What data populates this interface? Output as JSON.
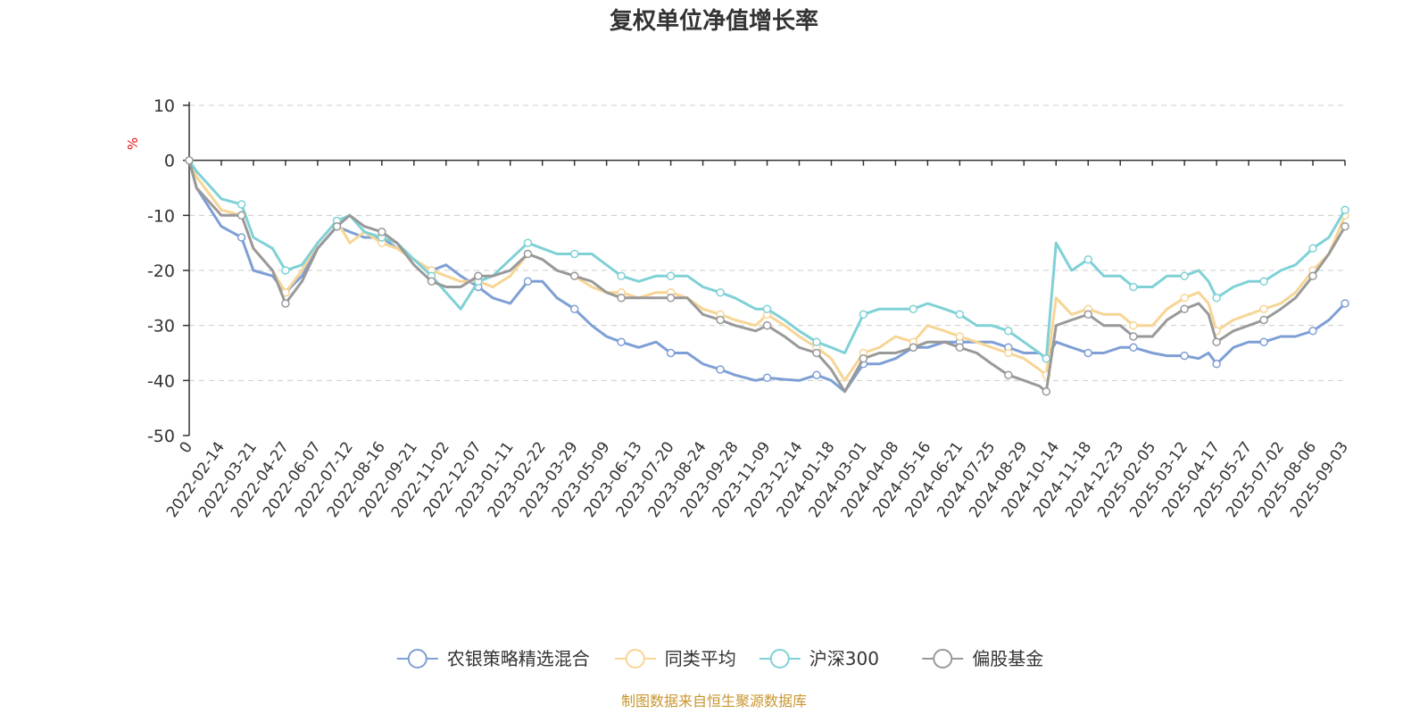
{
  "chart_data": {
    "type": "line",
    "title": "复权单位净值增长率",
    "ylabel": "%",
    "ylim": [
      -50,
      10
    ],
    "yticks": [
      10,
      0,
      -10,
      -20,
      -30,
      -40,
      -50
    ],
    "grid": true,
    "legend_position": "bottom",
    "x_tick_labels": [
      "0",
      "2022-02-14",
      "2022-03-21",
      "2022-04-27",
      "2022-06-07",
      "2022-07-12",
      "2022-08-16",
      "2022-09-21",
      "2022-11-02",
      "2022-12-07",
      "2023-01-11",
      "2023-02-22",
      "2023-03-29",
      "2023-05-09",
      "2023-06-13",
      "2023-07-20",
      "2023-08-24",
      "2023-09-28",
      "2023-11-09",
      "2023-12-14",
      "2024-01-18",
      "2024-03-01",
      "2024-04-08",
      "2024-05-16",
      "2024-06-21",
      "2024-07-25",
      "2024-08-29",
      "2024-10-14",
      "2024-11-18",
      "2024-12-23",
      "2025-02-05",
      "2025-03-12",
      "2025-04-17",
      "2025-05-27",
      "2025-07-02",
      "2025-08-06",
      "2025-09-03"
    ],
    "series": [
      {
        "name": "农银策略精选混合",
        "color": "#7e9fd5",
        "x": [
          "0",
          "2022-01-18",
          "2022-02-14",
          "2022-03-08",
          "2022-03-21",
          "2022-04-12",
          "2022-04-27",
          "2022-05-18",
          "2022-06-07",
          "2022-06-28",
          "2022-07-12",
          "2022-07-28",
          "2022-08-16",
          "2022-09-02",
          "2022-09-21",
          "2022-10-14",
          "2022-11-02",
          "2022-11-18",
          "2022-12-07",
          "2022-12-23",
          "2023-01-11",
          "2023-02-03",
          "2023-02-22",
          "2023-03-10",
          "2023-03-29",
          "2023-04-20",
          "2023-05-09",
          "2023-05-25",
          "2023-06-13",
          "2023-07-03",
          "2023-07-20",
          "2023-08-07",
          "2023-08-24",
          "2023-09-12",
          "2023-09-28",
          "2023-10-25",
          "2023-11-09",
          "2023-11-28",
          "2023-12-14",
          "2024-01-02",
          "2024-01-18",
          "2024-02-05",
          "2024-03-01",
          "2024-03-20",
          "2024-04-08",
          "2024-04-29",
          "2024-05-16",
          "2024-06-04",
          "2024-06-21",
          "2024-07-09",
          "2024-07-25",
          "2024-08-12",
          "2024-08-29",
          "2024-09-20",
          "2024-09-30",
          "2024-10-14",
          "2024-10-31",
          "2024-11-18",
          "2024-12-05",
          "2024-12-23",
          "2025-01-10",
          "2025-02-05",
          "2025-02-21",
          "2025-03-12",
          "2025-03-28",
          "2025-04-08",
          "2025-04-17",
          "2025-05-08",
          "2025-05-27",
          "2025-06-13",
          "2025-07-02",
          "2025-07-18",
          "2025-08-06",
          "2025-08-20",
          "2025-09-03"
        ],
        "values": [
          0,
          -5,
          -12,
          -14,
          -20,
          -21,
          -24,
          -21,
          -16,
          -12,
          -13,
          -14,
          -14,
          -16,
          -18,
          -20,
          -19,
          -21,
          -23,
          -25,
          -26,
          -22,
          -22,
          -25,
          -27,
          -30,
          -32,
          -33,
          -34,
          -33,
          -35,
          -35,
          -37,
          -38,
          -39,
          -40,
          -39.5,
          -39.8,
          -40,
          -39,
          -40,
          -42,
          -37,
          -37,
          -36,
          -34,
          -34,
          -33,
          -33,
          -33,
          -33,
          -34,
          -35,
          -35,
          -36,
          -33,
          -34,
          -35,
          -35,
          -34,
          -34,
          -35,
          -35.5,
          -35.5,
          -36,
          -35,
          -37,
          -34,
          -33,
          -33,
          -32,
          -32,
          -31,
          -29,
          -26
        ]
      },
      {
        "name": "同类平均",
        "color": "#f7d595",
        "x": [
          "0",
          "2022-01-18",
          "2022-02-14",
          "2022-03-08",
          "2022-03-21",
          "2022-04-12",
          "2022-04-27",
          "2022-05-18",
          "2022-06-07",
          "2022-06-28",
          "2022-07-12",
          "2022-07-28",
          "2022-08-16",
          "2022-09-02",
          "2022-09-21",
          "2022-10-14",
          "2022-11-02",
          "2022-11-18",
          "2022-12-07",
          "2022-12-23",
          "2023-01-11",
          "2023-02-03",
          "2023-02-22",
          "2023-03-10",
          "2023-03-29",
          "2023-04-20",
          "2023-05-09",
          "2023-05-25",
          "2023-06-13",
          "2023-07-03",
          "2023-07-20",
          "2023-08-07",
          "2023-08-24",
          "2023-09-12",
          "2023-09-28",
          "2023-10-25",
          "2023-11-09",
          "2023-11-28",
          "2023-12-14",
          "2024-01-02",
          "2024-01-18",
          "2024-02-05",
          "2024-03-01",
          "2024-03-20",
          "2024-04-08",
          "2024-04-29",
          "2024-05-16",
          "2024-06-04",
          "2024-06-21",
          "2024-07-09",
          "2024-07-25",
          "2024-08-12",
          "2024-08-29",
          "2024-09-20",
          "2024-09-30",
          "2024-10-14",
          "2024-10-31",
          "2024-11-18",
          "2024-12-05",
          "2024-12-23",
          "2025-01-10",
          "2025-02-05",
          "2025-02-21",
          "2025-03-12",
          "2025-03-28",
          "2025-04-08",
          "2025-04-17",
          "2025-05-08",
          "2025-05-27",
          "2025-06-13",
          "2025-07-02",
          "2025-07-18",
          "2025-08-06",
          "2025-08-20",
          "2025-09-03"
        ],
        "values": [
          0,
          -3,
          -9,
          -10,
          -16,
          -20,
          -24,
          -20,
          -15,
          -11,
          -15,
          -13,
          -15,
          -16,
          -18,
          -20,
          -21,
          -22,
          -22,
          -23,
          -21,
          -17,
          -18,
          -20,
          -21,
          -23,
          -24,
          -24,
          -25,
          -24,
          -24,
          -25,
          -27,
          -28,
          -29,
          -30,
          -28,
          -30,
          -32,
          -34,
          -36,
          -40,
          -35,
          -34,
          -32,
          -33,
          -30,
          -31,
          -32,
          -33,
          -34,
          -35,
          -36,
          -38,
          -39,
          -25,
          -28,
          -27,
          -28,
          -28,
          -30,
          -30,
          -27,
          -25,
          -24,
          -26,
          -31,
          -29,
          -28,
          -27,
          -26,
          -24,
          -20,
          -17,
          -10
        ]
      },
      {
        "name": "沪深300",
        "color": "#7fd1d6",
        "x": [
          "0",
          "2022-01-18",
          "2022-02-14",
          "2022-03-08",
          "2022-03-21",
          "2022-04-12",
          "2022-04-27",
          "2022-05-18",
          "2022-06-07",
          "2022-06-28",
          "2022-07-12",
          "2022-07-28",
          "2022-08-16",
          "2022-09-02",
          "2022-09-21",
          "2022-10-14",
          "2022-11-02",
          "2022-11-18",
          "2022-12-07",
          "2022-12-23",
          "2023-01-11",
          "2023-02-03",
          "2023-02-22",
          "2023-03-10",
          "2023-03-29",
          "2023-04-20",
          "2023-05-09",
          "2023-05-25",
          "2023-06-13",
          "2023-07-03",
          "2023-07-20",
          "2023-08-07",
          "2023-08-24",
          "2023-09-12",
          "2023-09-28",
          "2023-10-25",
          "2023-11-09",
          "2023-11-28",
          "2023-12-14",
          "2024-01-02",
          "2024-01-18",
          "2024-02-05",
          "2024-03-01",
          "2024-03-20",
          "2024-04-08",
          "2024-04-29",
          "2024-05-16",
          "2024-06-04",
          "2024-06-21",
          "2024-07-09",
          "2024-07-25",
          "2024-08-12",
          "2024-08-29",
          "2024-09-20",
          "2024-09-30",
          "2024-10-14",
          "2024-10-31",
          "2024-11-18",
          "2024-12-05",
          "2024-12-23",
          "2025-01-10",
          "2025-02-05",
          "2025-02-21",
          "2025-03-12",
          "2025-03-28",
          "2025-04-08",
          "2025-04-17",
          "2025-05-08",
          "2025-05-27",
          "2025-06-13",
          "2025-07-02",
          "2025-07-18",
          "2025-08-06",
          "2025-08-20",
          "2025-09-03"
        ],
        "values": [
          0,
          -2,
          -7,
          -8,
          -14,
          -16,
          -20,
          -19,
          -15,
          -11,
          -10,
          -13,
          -14,
          -15,
          -18,
          -21,
          -24,
          -27,
          -22,
          -21,
          -18,
          -15,
          -16,
          -17,
          -17,
          -17,
          -19,
          -21,
          -22,
          -21,
          -21,
          -21,
          -23,
          -24,
          -25,
          -27,
          -27,
          -29,
          -31,
          -33,
          -34,
          -35,
          -28,
          -27,
          -27,
          -27,
          -26,
          -27,
          -28,
          -30,
          -30,
          -31,
          -33,
          -35,
          -36,
          -15,
          -20,
          -18,
          -21,
          -21,
          -23,
          -23,
          -21,
          -21,
          -20,
          -22,
          -25,
          -23,
          -22,
          -22,
          -20,
          -19,
          -16,
          -14,
          -9
        ]
      },
      {
        "name": "偏股基金",
        "color": "#999999",
        "x": [
          "0",
          "2022-01-18",
          "2022-02-14",
          "2022-03-08",
          "2022-03-21",
          "2022-04-12",
          "2022-04-27",
          "2022-05-18",
          "2022-06-07",
          "2022-06-28",
          "2022-07-12",
          "2022-07-28",
          "2022-08-16",
          "2022-09-02",
          "2022-09-21",
          "2022-10-14",
          "2022-11-02",
          "2022-11-18",
          "2022-12-07",
          "2022-12-23",
          "2023-01-11",
          "2023-02-03",
          "2023-02-22",
          "2023-03-10",
          "2023-03-29",
          "2023-04-20",
          "2023-05-09",
          "2023-05-25",
          "2023-06-13",
          "2023-07-03",
          "2023-07-20",
          "2023-08-07",
          "2023-08-24",
          "2023-09-12",
          "2023-09-28",
          "2023-10-25",
          "2023-11-09",
          "2023-11-28",
          "2023-12-14",
          "2024-01-02",
          "2024-01-18",
          "2024-02-05",
          "2024-03-01",
          "2024-03-20",
          "2024-04-08",
          "2024-04-29",
          "2024-05-16",
          "2024-06-04",
          "2024-06-21",
          "2024-07-09",
          "2024-07-25",
          "2024-08-12",
          "2024-08-29",
          "2024-09-20",
          "2024-09-30",
          "2024-10-14",
          "2024-10-31",
          "2024-11-18",
          "2024-12-05",
          "2024-12-23",
          "2025-01-10",
          "2025-02-05",
          "2025-02-21",
          "2025-03-12",
          "2025-03-28",
          "2025-04-08",
          "2025-04-17",
          "2025-05-08",
          "2025-05-27",
          "2025-06-13",
          "2025-07-02",
          "2025-07-18",
          "2025-08-06",
          "2025-08-20",
          "2025-09-03"
        ],
        "values": [
          0,
          -5,
          -10,
          -10,
          -16,
          -20,
          -26,
          -22,
          -16,
          -12,
          -10,
          -12,
          -13,
          -15,
          -19,
          -22,
          -23,
          -23,
          -21,
          -21,
          -20,
          -17,
          -18,
          -20,
          -21,
          -22,
          -24,
          -25,
          -25,
          -25,
          -25,
          -25,
          -28,
          -29,
          -30,
          -31,
          -30,
          -32,
          -34,
          -35,
          -38,
          -42,
          -36,
          -35,
          -35,
          -34,
          -33,
          -33,
          -34,
          -35,
          -37,
          -39,
          -40,
          -41,
          -42,
          -30,
          -29,
          -28,
          -30,
          -30,
          -32,
          -32,
          -29,
          -27,
          -26,
          -28,
          -33,
          -31,
          -30,
          -29,
          -27,
          -25,
          -21,
          -17,
          -12
        ]
      }
    ]
  },
  "source": "制图数据来自恒生聚源数据库"
}
